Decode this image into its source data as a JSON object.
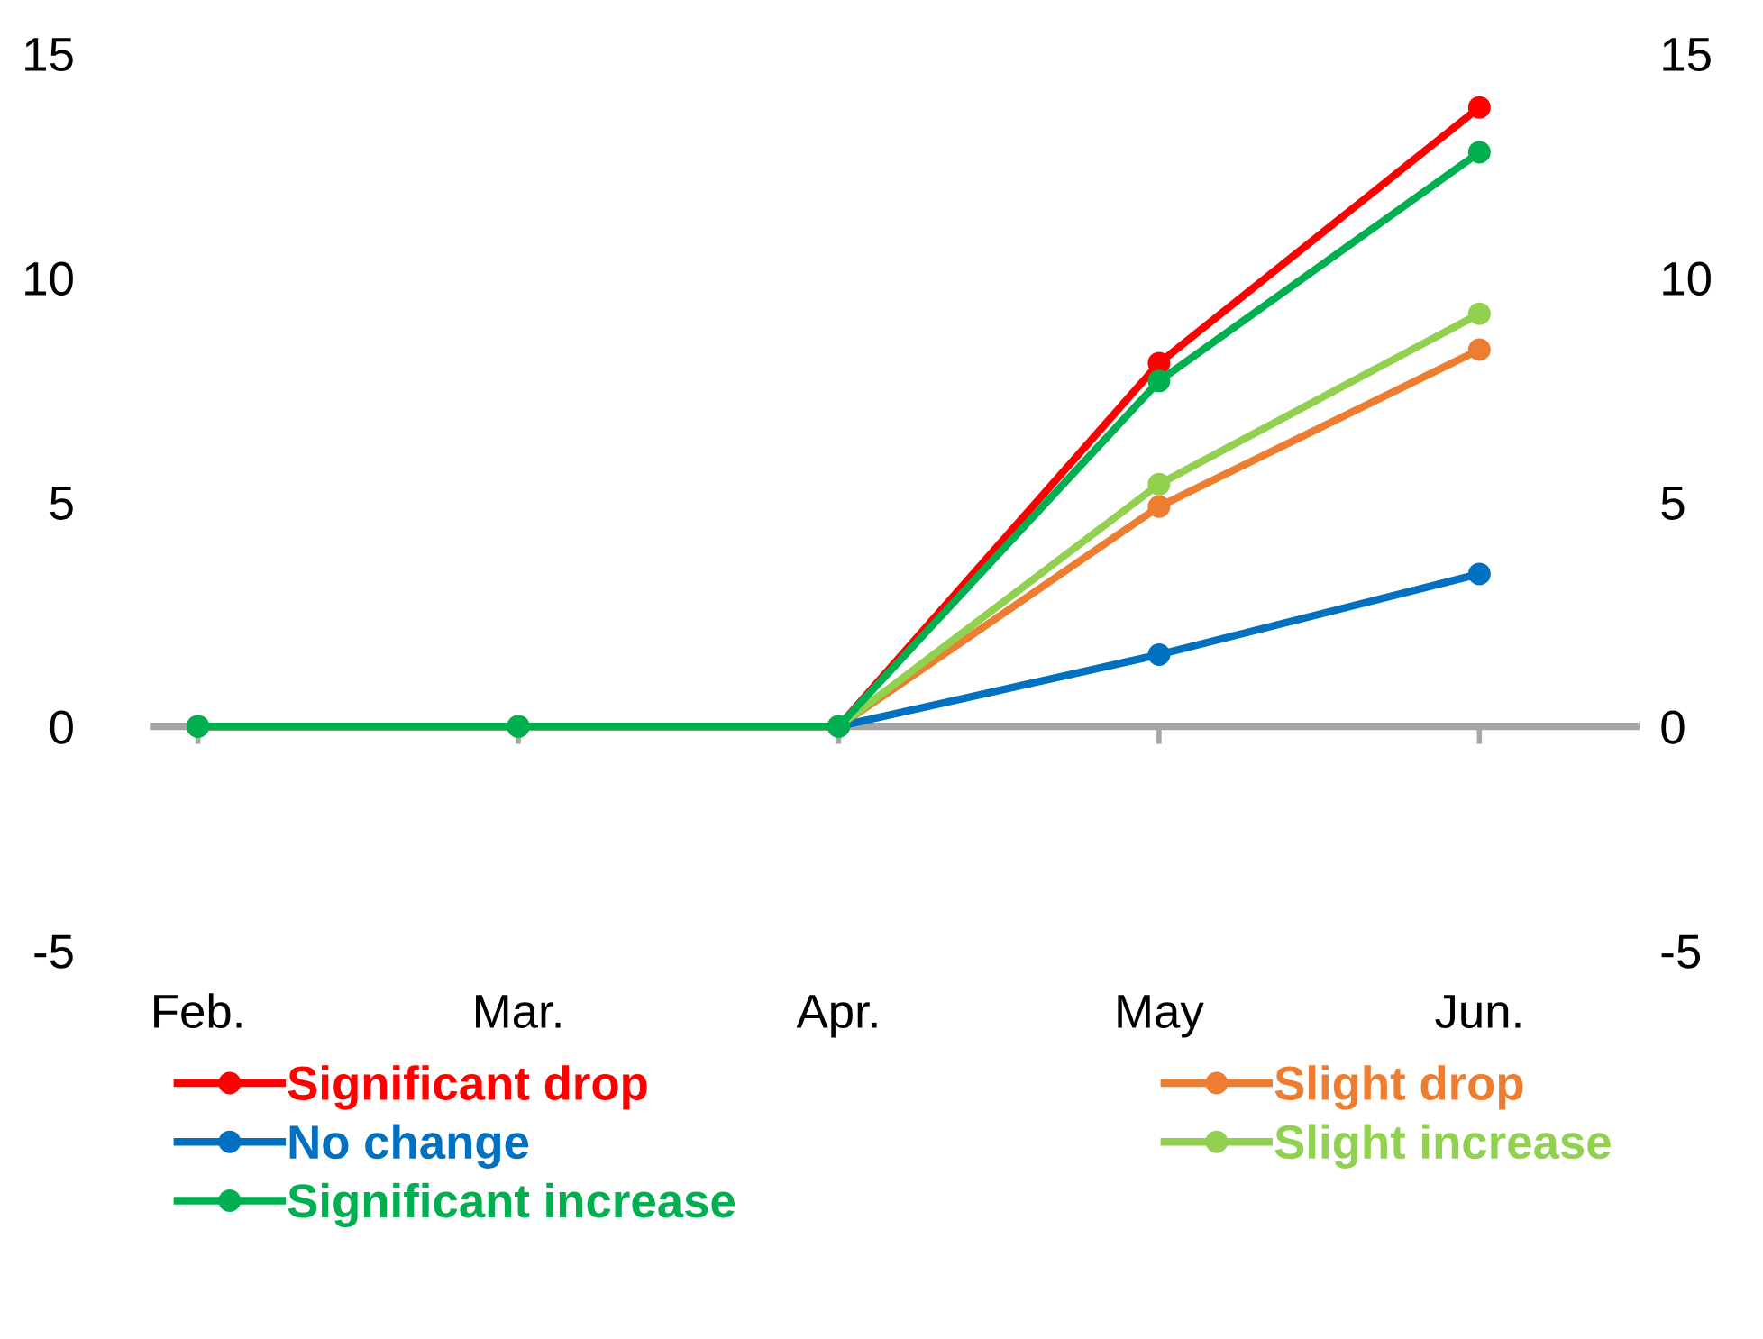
{
  "chart_data": {
    "type": "line",
    "categories": [
      "Feb.",
      "Mar.",
      "Apr.",
      "May",
      "Jun."
    ],
    "series": [
      {
        "name": "Significant drop",
        "color": "#ff0000",
        "values": [
          0,
          0,
          0,
          8.1,
          13.8
        ]
      },
      {
        "name": "Slight drop",
        "color": "#ed7d31",
        "values": [
          0,
          0,
          0,
          4.9,
          8.4
        ]
      },
      {
        "name": "No change",
        "color": "#0070c0",
        "values": [
          0,
          0,
          0,
          1.6,
          3.4
        ]
      },
      {
        "name": "Slight increase",
        "color": "#92d050",
        "values": [
          0,
          0,
          0,
          5.4,
          9.2
        ]
      },
      {
        "name": "Significant increase",
        "color": "#00b050",
        "values": [
          0,
          0,
          0,
          7.7,
          12.8
        ]
      }
    ],
    "ylim": [
      -5,
      15
    ],
    "yticks": [
      -5,
      0,
      5,
      10,
      15
    ],
    "y2lim": [
      -5,
      15
    ],
    "y2ticks": [
      -5,
      0,
      5,
      10,
      15
    ],
    "ref_lines": [
      {
        "axis": "y",
        "value": 0,
        "color": "#a6a6a6",
        "line_style": "solid"
      }
    ],
    "marker": "circle",
    "line_style": "solid",
    "grid": false,
    "legend": "bottom"
  }
}
